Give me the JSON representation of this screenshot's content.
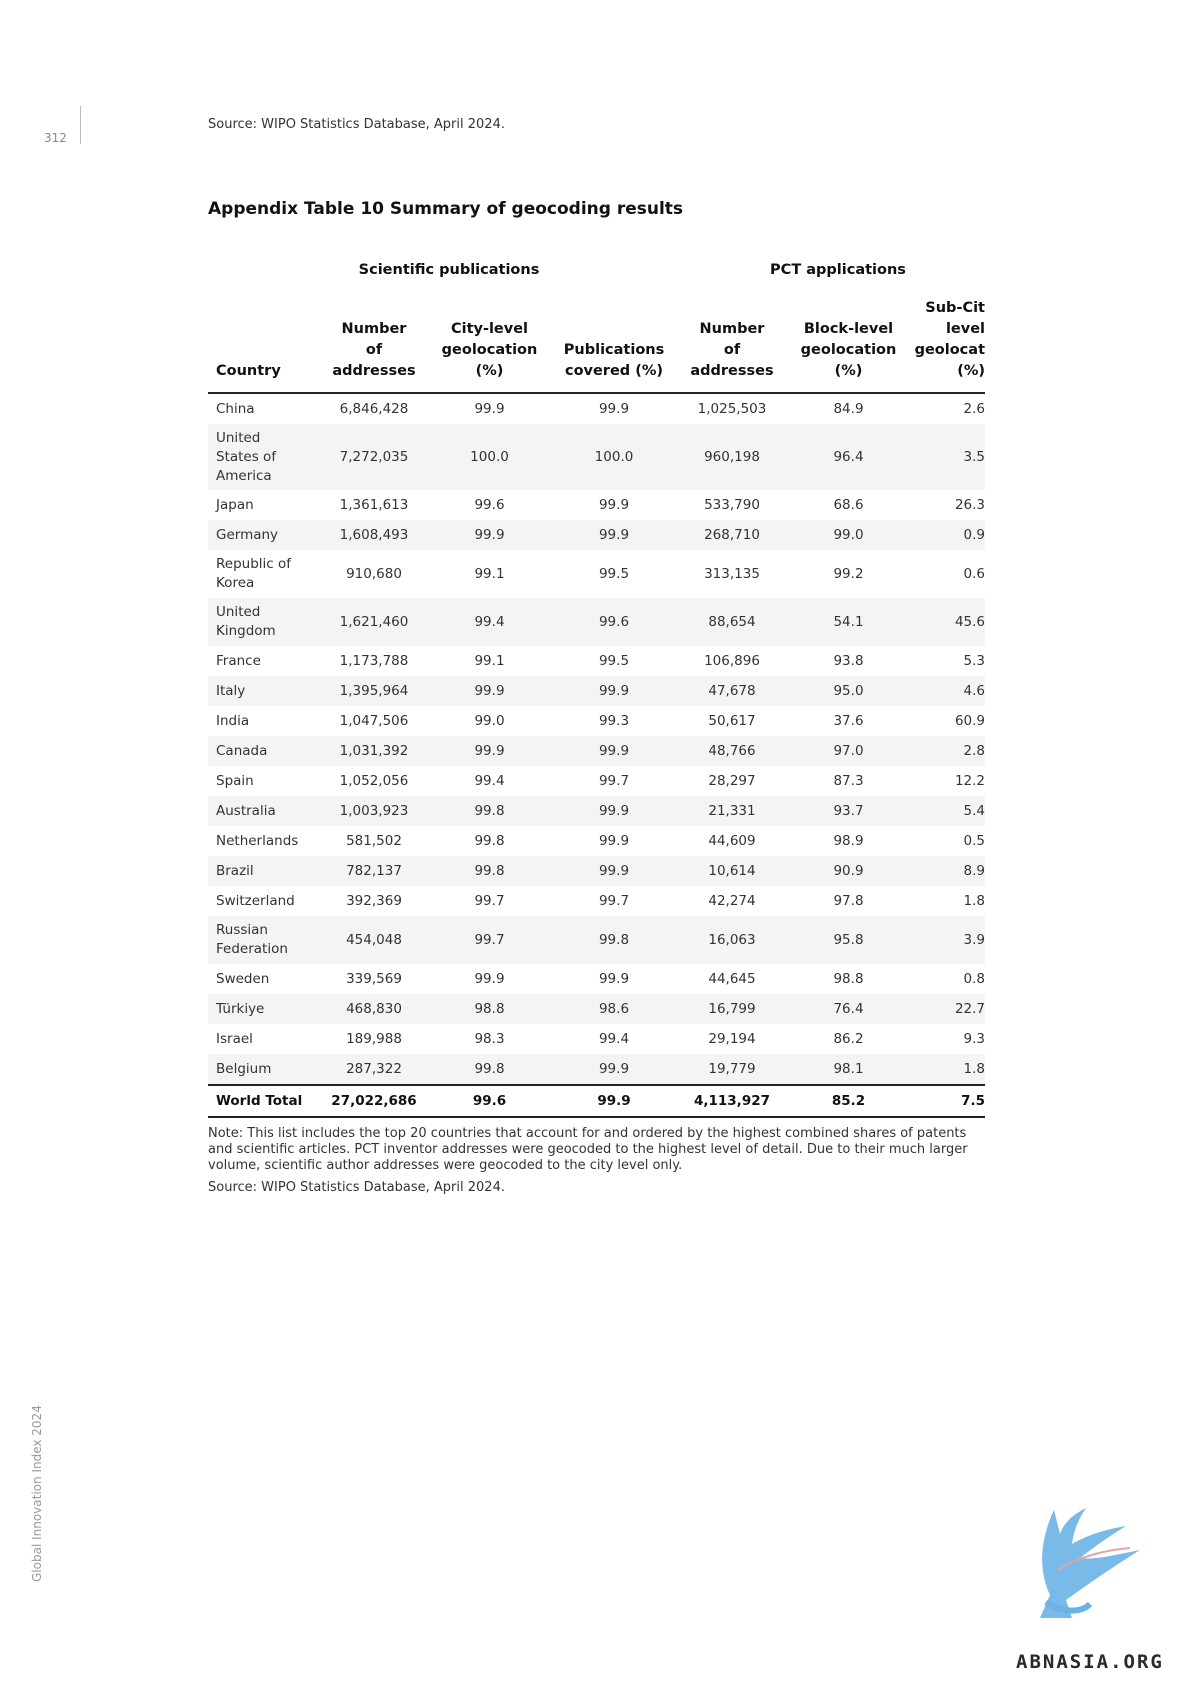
{
  "page": {
    "number": "312",
    "top_source": "Source: WIPO Statistics Database, April 2024.",
    "side_label": "Global Innovation Index 2024",
    "watermark": "ABNASIA.ORG"
  },
  "table": {
    "title": "Appendix Table 10 Summary of geocoding results",
    "group_headers": {
      "scientific": "Scientific publications",
      "pct": "PCT applications"
    },
    "columns": [
      "Country",
      "Number\nof\naddresses",
      "City-level\ngeolocation\n(%)",
      "Publications\ncovered (%)",
      "Number\nof\naddresses",
      "Block-level\ngeolocation\n(%)",
      "Sub-Cit\nlevel\ngeolocat\n(%)"
    ],
    "rows": [
      {
        "country": "China",
        "sci_addresses": "6,846,428",
        "city_level": "99.9",
        "pubs_covered": "99.9",
        "pct_addresses": "1,025,503",
        "block_level": "84.9",
        "subcity_level": "2.6"
      },
      {
        "country": "United\nStates of\nAmerica",
        "sci_addresses": "7,272,035",
        "city_level": "100.0",
        "pubs_covered": "100.0",
        "pct_addresses": "960,198",
        "block_level": "96.4",
        "subcity_level": "3.5"
      },
      {
        "country": "Japan",
        "sci_addresses": "1,361,613",
        "city_level": "99.6",
        "pubs_covered": "99.9",
        "pct_addresses": "533,790",
        "block_level": "68.6",
        "subcity_level": "26.3"
      },
      {
        "country": "Germany",
        "sci_addresses": "1,608,493",
        "city_level": "99.9",
        "pubs_covered": "99.9",
        "pct_addresses": "268,710",
        "block_level": "99.0",
        "subcity_level": "0.9"
      },
      {
        "country": "Republic of\nKorea",
        "sci_addresses": "910,680",
        "city_level": "99.1",
        "pubs_covered": "99.5",
        "pct_addresses": "313,135",
        "block_level": "99.2",
        "subcity_level": "0.6"
      },
      {
        "country": "United\nKingdom",
        "sci_addresses": "1,621,460",
        "city_level": "99.4",
        "pubs_covered": "99.6",
        "pct_addresses": "88,654",
        "block_level": "54.1",
        "subcity_level": "45.6"
      },
      {
        "country": "France",
        "sci_addresses": "1,173,788",
        "city_level": "99.1",
        "pubs_covered": "99.5",
        "pct_addresses": "106,896",
        "block_level": "93.8",
        "subcity_level": "5.3"
      },
      {
        "country": "Italy",
        "sci_addresses": "1,395,964",
        "city_level": "99.9",
        "pubs_covered": "99.9",
        "pct_addresses": "47,678",
        "block_level": "95.0",
        "subcity_level": "4.6"
      },
      {
        "country": "India",
        "sci_addresses": "1,047,506",
        "city_level": "99.0",
        "pubs_covered": "99.3",
        "pct_addresses": "50,617",
        "block_level": "37.6",
        "subcity_level": "60.9"
      },
      {
        "country": "Canada",
        "sci_addresses": "1,031,392",
        "city_level": "99.9",
        "pubs_covered": "99.9",
        "pct_addresses": "48,766",
        "block_level": "97.0",
        "subcity_level": "2.8"
      },
      {
        "country": "Spain",
        "sci_addresses": "1,052,056",
        "city_level": "99.4",
        "pubs_covered": "99.7",
        "pct_addresses": "28,297",
        "block_level": "87.3",
        "subcity_level": "12.2"
      },
      {
        "country": "Australia",
        "sci_addresses": "1,003,923",
        "city_level": "99.8",
        "pubs_covered": "99.9",
        "pct_addresses": "21,331",
        "block_level": "93.7",
        "subcity_level": "5.4"
      },
      {
        "country": "Netherlands",
        "sci_addresses": "581,502",
        "city_level": "99.8",
        "pubs_covered": "99.9",
        "pct_addresses": "44,609",
        "block_level": "98.9",
        "subcity_level": "0.5"
      },
      {
        "country": "Brazil",
        "sci_addresses": "782,137",
        "city_level": "99.8",
        "pubs_covered": "99.9",
        "pct_addresses": "10,614",
        "block_level": "90.9",
        "subcity_level": "8.9"
      },
      {
        "country": "Switzerland",
        "sci_addresses": "392,369",
        "city_level": "99.7",
        "pubs_covered": "99.7",
        "pct_addresses": "42,274",
        "block_level": "97.8",
        "subcity_level": "1.8"
      },
      {
        "country": "Russian\nFederation",
        "sci_addresses": "454,048",
        "city_level": "99.7",
        "pubs_covered": "99.8",
        "pct_addresses": "16,063",
        "block_level": "95.8",
        "subcity_level": "3.9"
      },
      {
        "country": "Sweden",
        "sci_addresses": "339,569",
        "city_level": "99.9",
        "pubs_covered": "99.9",
        "pct_addresses": "44,645",
        "block_level": "98.8",
        "subcity_level": "0.8"
      },
      {
        "country": "Türkiye",
        "sci_addresses": "468,830",
        "city_level": "98.8",
        "pubs_covered": "98.6",
        "pct_addresses": "16,799",
        "block_level": "76.4",
        "subcity_level": "22.7"
      },
      {
        "country": "Israel",
        "sci_addresses": "189,988",
        "city_level": "98.3",
        "pubs_covered": "99.4",
        "pct_addresses": "29,194",
        "block_level": "86.2",
        "subcity_level": "9.3"
      },
      {
        "country": "Belgium",
        "sci_addresses": "287,322",
        "city_level": "99.8",
        "pubs_covered": "99.9",
        "pct_addresses": "19,779",
        "block_level": "98.1",
        "subcity_level": "1.8"
      }
    ],
    "total": {
      "country": "World Total",
      "sci_addresses": "27,022,686",
      "city_level": "99.6",
      "pubs_covered": "99.9",
      "pct_addresses": "4,113,927",
      "block_level": "85.2",
      "subcity_level": "7.5"
    }
  },
  "notes": {
    "note": "Note: This list includes the top 20 countries that account for and ordered by the highest combined shares of patents and scientific articles. PCT inventor addresses were geocoded to the highest level of detail. Due to their much larger volume, scientific author addresses were geocoded to the city level only.",
    "source": "Source: WIPO Statistics Database, April 2024."
  }
}
